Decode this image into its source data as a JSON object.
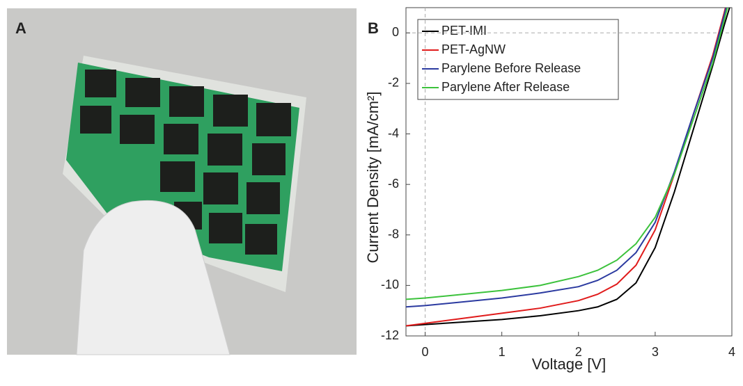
{
  "panel_labels": [
    "A",
    "B"
  ],
  "chart_data": {
    "type": "line",
    "xlabel": "Voltage [V]",
    "ylabel": "Current Density [mA/cm²]",
    "x": [
      -0.25,
      0,
      0.5,
      1,
      1.5,
      2,
      2.25,
      2.5,
      2.75,
      3,
      3.25,
      3.5,
      3.75,
      3.9,
      4.0
    ],
    "series": [
      {
        "name": "PET-IMI",
        "color": "#000000",
        "values": [
          -11.6,
          -11.55,
          -11.45,
          -11.35,
          -11.2,
          -11.0,
          -10.85,
          -10.55,
          -9.9,
          -8.5,
          -6.3,
          -3.8,
          -1.3,
          0.3,
          1.3
        ]
      },
      {
        "name": "PET-AgNW",
        "color": "#e01b1b",
        "values": [
          -11.6,
          -11.5,
          -11.3,
          -11.1,
          -10.9,
          -10.6,
          -10.35,
          -9.95,
          -9.2,
          -7.8,
          -5.6,
          -3.2,
          -0.9,
          0.8,
          2.0
        ]
      },
      {
        "name": "Parylene Before Release",
        "color": "#2b3aa0",
        "values": [
          -10.85,
          -10.8,
          -10.65,
          -10.5,
          -10.3,
          -10.05,
          -9.8,
          -9.4,
          -8.7,
          -7.5,
          -5.5,
          -3.2,
          -1.0,
          0.7,
          1.9
        ]
      },
      {
        "name": "Parylene After Release",
        "color": "#3cc23c",
        "values": [
          -10.55,
          -10.5,
          -10.35,
          -10.2,
          -10.0,
          -9.65,
          -9.4,
          -9.0,
          -8.35,
          -7.3,
          -5.6,
          -3.4,
          -1.2,
          0.5,
          1.7
        ]
      }
    ],
    "xlim": [
      -0.25,
      4
    ],
    "ylim": [
      -12,
      1
    ],
    "xticks": [
      0,
      1,
      2,
      3,
      4
    ],
    "yticks": [
      -12,
      -10,
      -8,
      -6,
      -4,
      -2,
      0
    ],
    "zero_lines": true,
    "legend": "upper-left"
  }
}
